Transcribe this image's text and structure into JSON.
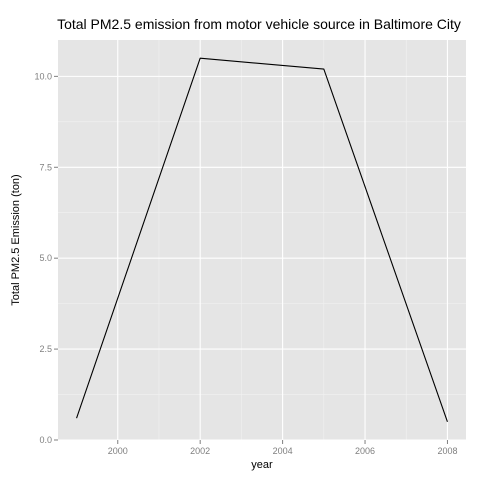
{
  "chart_data": {
    "type": "line",
    "title": "Total PM2.5 emission from  motor vehicle source in Baltimore City",
    "xlabel": "year",
    "ylabel": "Total PM2.5 Emission (ton)",
    "x": [
      1999,
      2002,
      2005,
      2008
    ],
    "series": [
      {
        "values": [
          0.6,
          10.5,
          10.2,
          0.5
        ]
      }
    ],
    "xlim": [
      1998.55,
      2008.45
    ],
    "ylim": [
      0,
      11.0
    ],
    "xticks": [
      2000,
      2002,
      2004,
      2006,
      2008
    ],
    "xtick_labels": [
      "2000",
      "2002",
      "2004",
      "2006",
      "2008"
    ],
    "yticks": [
      0,
      2.5,
      5.0,
      7.5,
      10.0
    ],
    "ytick_labels": [
      "0.0",
      "2.5",
      "5.0",
      "7.5",
      "10.0"
    ],
    "grid": true,
    "legend": "none",
    "colors": {
      "panel_background": "#e5e5e5",
      "grid_major": "#ffffff",
      "grid_minor": "#f2f2f2",
      "line": "#000000",
      "tick_label": "#7f7f7f"
    }
  }
}
